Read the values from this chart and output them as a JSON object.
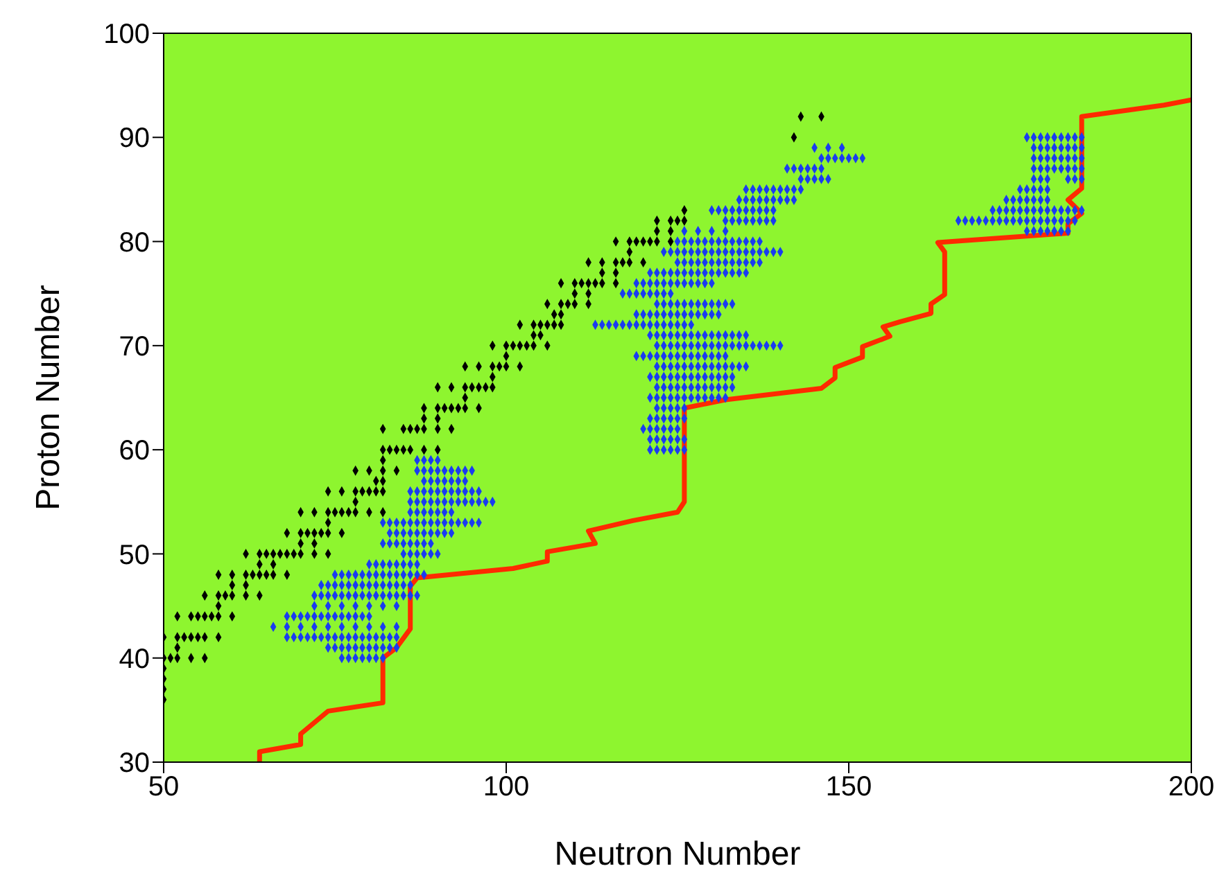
{
  "chart_data": {
    "type": "scatter",
    "xlabel": "Neutron Number",
    "ylabel": "Proton Number",
    "xlim": [
      50,
      200
    ],
    "ylim": [
      30,
      100
    ],
    "xticks": [
      50,
      100,
      150,
      200
    ],
    "yticks": [
      30,
      40,
      50,
      60,
      70,
      80,
      90,
      100
    ],
    "grid": false,
    "marker": "diamond",
    "series": [
      {
        "color": "#000000",
        "x": [
          50,
          50,
          50,
          50,
          50,
          51,
          52,
          54,
          56,
          52,
          50,
          52,
          53,
          54,
          55,
          56,
          58,
          52,
          54,
          55,
          56,
          57,
          58,
          60,
          58,
          56,
          58,
          59,
          60,
          62,
          64,
          60,
          62,
          58,
          60,
          62,
          63,
          64,
          65,
          66,
          68,
          64,
          66,
          62,
          64,
          65,
          66,
          67,
          68,
          69,
          70,
          72,
          74,
          70,
          72,
          68,
          70,
          71,
          72,
          73,
          74,
          76,
          74,
          70,
          72,
          74,
          75,
          76,
          77,
          78,
          80,
          82,
          78,
          74,
          76,
          78,
          79,
          80,
          81,
          82,
          81,
          82,
          78,
          80,
          82,
          84,
          82,
          82,
          83,
          84,
          85,
          86,
          88,
          90,
          82,
          85,
          86,
          87,
          88,
          90,
          92,
          88,
          90,
          88,
          90,
          91,
          92,
          93,
          94,
          96,
          94,
          90,
          92,
          94,
          95,
          96,
          97,
          98,
          98,
          94,
          96,
          98,
          99,
          100,
          102,
          100,
          98,
          100,
          101,
          102,
          103,
          104,
          106,
          104,
          105,
          102,
          104,
          105,
          106,
          107,
          108,
          107,
          108,
          106,
          108,
          109,
          110,
          112,
          110,
          112,
          108,
          110,
          111,
          112,
          113,
          114,
          116,
          114,
          116,
          112,
          114,
          116,
          117,
          118,
          120,
          118,
          116,
          118,
          119,
          120,
          121,
          122,
          124,
          122,
          124,
          122,
          124,
          125,
          126,
          126,
          142,
          143,
          146
        ],
        "values": [
          36,
          37,
          38,
          39,
          40,
          40,
          40,
          40,
          40,
          41,
          42,
          42,
          42,
          42,
          42,
          42,
          42,
          44,
          44,
          44,
          44,
          44,
          44,
          44,
          45,
          46,
          46,
          46,
          46,
          46,
          46,
          47,
          47,
          48,
          48,
          48,
          48,
          48,
          48,
          48,
          48,
          49,
          49,
          50,
          50,
          50,
          50,
          50,
          50,
          50,
          50,
          50,
          50,
          51,
          51,
          52,
          52,
          52,
          52,
          52,
          52,
          52,
          53,
          54,
          54,
          54,
          54,
          54,
          54,
          54,
          54,
          54,
          55,
          56,
          56,
          56,
          56,
          56,
          56,
          56,
          57,
          57,
          58,
          58,
          58,
          58,
          59,
          60,
          60,
          60,
          60,
          60,
          60,
          60,
          62,
          62,
          62,
          62,
          62,
          62,
          62,
          63,
          63,
          64,
          64,
          64,
          64,
          64,
          64,
          64,
          65,
          66,
          66,
          66,
          66,
          66,
          66,
          66,
          67,
          68,
          68,
          68,
          68,
          68,
          68,
          69,
          70,
          70,
          70,
          70,
          70,
          70,
          70,
          71,
          71,
          72,
          72,
          72,
          72,
          72,
          72,
          73,
          73,
          74,
          74,
          74,
          74,
          74,
          75,
          75,
          76,
          76,
          76,
          76,
          76,
          76,
          76,
          77,
          77,
          78,
          78,
          78,
          78,
          78,
          78,
          79,
          80,
          80,
          80,
          80,
          80,
          80,
          80,
          81,
          81,
          82,
          82,
          82,
          82,
          83,
          90,
          92,
          92
        ]
      },
      {
        "color": "#1a3cf0",
        "x": [
          76,
          77,
          78,
          79,
          80,
          81,
          82,
          74,
          75,
          76,
          77,
          78,
          79,
          80,
          81,
          82,
          83,
          84,
          68,
          69,
          70,
          71,
          72,
          73,
          74,
          75,
          76,
          77,
          78,
          79,
          80,
          81,
          82,
          83,
          84,
          66,
          68,
          70,
          72,
          74,
          76,
          78,
          80,
          82,
          84,
          68,
          69,
          70,
          71,
          72,
          73,
          74,
          75,
          76,
          77,
          78,
          79,
          80,
          72,
          74,
          76,
          78,
          80,
          82,
          84,
          72,
          73,
          74,
          75,
          76,
          77,
          78,
          79,
          80,
          81,
          82,
          83,
          84,
          85,
          86,
          87,
          73,
          74,
          75,
          76,
          77,
          78,
          79,
          80,
          81,
          82,
          83,
          84,
          85,
          86,
          75,
          76,
          77,
          78,
          79,
          80,
          81,
          82,
          83,
          84,
          85,
          86,
          87,
          88,
          80,
          81,
          82,
          83,
          84,
          85,
          86,
          87,
          85,
          86,
          87,
          88,
          89,
          90,
          82,
          83,
          84,
          85,
          86,
          87,
          88,
          89,
          83,
          84,
          85,
          86,
          87,
          88,
          89,
          90,
          91,
          92,
          82,
          83,
          84,
          85,
          86,
          87,
          88,
          89,
          90,
          91,
          92,
          93,
          94,
          95,
          96,
          86,
          87,
          88,
          89,
          90,
          91,
          92,
          86,
          87,
          88,
          89,
          90,
          91,
          92,
          93,
          94,
          95,
          96,
          97,
          98,
          86,
          87,
          88,
          89,
          90,
          91,
          92,
          93,
          94,
          95,
          96,
          88,
          89,
          90,
          91,
          92,
          93,
          94,
          87,
          88,
          89,
          90,
          91,
          92,
          93,
          94,
          95,
          87,
          88,
          89,
          90,
          121,
          122,
          123,
          124,
          125,
          126,
          121,
          122,
          123,
          124,
          125,
          126,
          120,
          121,
          122,
          123,
          124,
          125,
          121,
          122,
          123,
          124,
          125,
          126,
          122,
          123,
          124,
          125,
          126,
          121,
          122,
          123,
          124,
          125,
          126,
          127,
          128,
          129,
          130,
          131,
          132,
          122,
          123,
          124,
          125,
          126,
          127,
          128,
          129,
          130,
          131,
          132,
          133,
          121,
          122,
          123,
          124,
          125,
          126,
          127,
          128,
          129,
          130,
          131,
          132,
          133,
          122,
          123,
          124,
          125,
          126,
          127,
          128,
          129,
          130,
          131,
          132,
          133,
          134,
          135,
          119,
          120,
          121,
          122,
          123,
          124,
          125,
          126,
          127,
          128,
          129,
          130,
          131,
          132,
          122,
          123,
          124,
          125,
          126,
          127,
          128,
          129,
          130,
          131,
          132,
          133,
          134,
          135,
          136,
          137,
          138,
          139,
          140,
          121,
          122,
          123,
          124,
          125,
          126,
          127,
          128,
          129,
          130,
          131,
          132,
          133,
          134,
          135,
          113,
          114,
          115,
          116,
          117,
          118,
          119,
          120,
          121,
          122,
          123,
          124,
          125,
          126,
          127,
          119,
          120,
          121,
          122,
          123,
          124,
          125,
          126,
          127,
          128,
          129,
          130,
          131,
          122,
          123,
          124,
          125,
          126,
          127,
          128,
          129,
          130,
          131,
          132,
          133,
          117,
          118,
          119,
          120,
          121,
          122,
          123,
          124,
          119,
          120,
          121,
          122,
          123,
          124,
          125,
          126,
          127,
          128,
          129,
          130,
          121,
          122,
          123,
          124,
          125,
          126,
          127,
          128,
          129,
          130,
          131,
          132,
          133,
          134,
          135,
          125,
          126,
          127,
          128,
          129,
          130,
          131,
          132,
          133,
          134,
          135,
          136,
          137,
          123,
          124,
          125,
          126,
          127,
          128,
          129,
          130,
          131,
          132,
          133,
          134,
          135,
          136,
          137,
          138,
          139,
          140,
          125,
          126,
          127,
          128,
          129,
          130,
          131,
          132,
          133,
          134,
          135,
          136,
          137,
          126,
          128,
          130,
          132,
          132,
          133,
          134,
          135,
          136,
          137,
          138,
          139,
          130,
          131,
          132,
          133,
          134,
          135,
          136,
          137,
          138,
          139,
          134,
          135,
          136,
          137,
          138,
          139,
          140,
          141,
          142,
          135,
          136,
          137,
          138,
          139,
          140,
          141,
          142,
          143,
          143,
          144,
          145,
          146,
          147,
          141,
          142,
          143,
          144,
          145,
          146,
          146,
          147,
          148,
          149,
          150,
          151,
          152,
          145,
          147,
          149,
          176,
          177,
          178,
          179,
          180,
          181,
          182,
          166,
          167,
          168,
          169,
          170,
          171,
          172,
          173,
          174,
          175,
          176,
          177,
          178,
          179,
          180,
          181,
          182,
          183,
          171,
          172,
          173,
          174,
          175,
          176,
          177,
          178,
          179,
          180,
          181,
          182,
          183,
          184,
          173,
          174,
          175,
          176,
          177,
          178,
          179,
          175,
          176,
          177,
          178,
          179,
          177,
          178,
          179,
          182,
          183,
          184,
          177,
          178,
          179,
          180,
          181,
          182,
          183,
          184,
          177,
          178,
          179,
          180,
          181,
          182,
          183,
          184,
          177,
          178,
          179,
          180,
          181,
          182,
          183,
          184,
          176,
          177,
          178,
          179,
          180,
          181,
          182,
          183,
          184
        ],
        "values": [
          40,
          40,
          40,
          40,
          40,
          40,
          40,
          41,
          41,
          41,
          41,
          41,
          41,
          41,
          41,
          41,
          41,
          41,
          42,
          42,
          42,
          42,
          42,
          42,
          42,
          42,
          42,
          42,
          42,
          42,
          42,
          42,
          42,
          42,
          42,
          43,
          43,
          43,
          43,
          43,
          43,
          43,
          43,
          43,
          43,
          44,
          44,
          44,
          44,
          44,
          44,
          44,
          44,
          44,
          44,
          44,
          44,
          44,
          45,
          45,
          45,
          45,
          45,
          45,
          45,
          46,
          46,
          46,
          46,
          46,
          46,
          46,
          46,
          46,
          46,
          46,
          46,
          46,
          46,
          46,
          46,
          47,
          47,
          47,
          47,
          47,
          47,
          47,
          47,
          47,
          47,
          47,
          47,
          47,
          47,
          48,
          48,
          48,
          48,
          48,
          48,
          48,
          48,
          48,
          48,
          48,
          48,
          48,
          48,
          49,
          49,
          49,
          49,
          49,
          49,
          49,
          49,
          50,
          50,
          50,
          50,
          50,
          50,
          51,
          51,
          51,
          51,
          51,
          51,
          51,
          51,
          52,
          52,
          52,
          52,
          52,
          52,
          52,
          52,
          52,
          52,
          53,
          53,
          53,
          53,
          53,
          53,
          53,
          53,
          53,
          53,
          53,
          53,
          53,
          53,
          53,
          54,
          54,
          54,
          54,
          54,
          54,
          54,
          55,
          55,
          55,
          55,
          55,
          55,
          55,
          55,
          55,
          55,
          55,
          55,
          55,
          56,
          56,
          56,
          56,
          56,
          56,
          56,
          56,
          56,
          56,
          56,
          57,
          57,
          57,
          57,
          57,
          57,
          57,
          58,
          58,
          58,
          58,
          58,
          58,
          58,
          58,
          58,
          59,
          59,
          59,
          59,
          60,
          60,
          60,
          60,
          60,
          60,
          61,
          61,
          61,
          61,
          61,
          61,
          62,
          62,
          62,
          62,
          62,
          62,
          63,
          63,
          63,
          63,
          63,
          63,
          64,
          64,
          64,
          64,
          64,
          65,
          65,
          65,
          65,
          65,
          65,
          65,
          65,
          65,
          65,
          65,
          65,
          66,
          66,
          66,
          66,
          66,
          66,
          66,
          66,
          66,
          66,
          66,
          66,
          67,
          67,
          67,
          67,
          67,
          67,
          67,
          67,
          67,
          67,
          67,
          67,
          67,
          68,
          68,
          68,
          68,
          68,
          68,
          68,
          68,
          68,
          68,
          68,
          68,
          68,
          68,
          69,
          69,
          69,
          69,
          69,
          69,
          69,
          69,
          69,
          69,
          69,
          69,
          69,
          69,
          70,
          70,
          70,
          70,
          70,
          70,
          70,
          70,
          70,
          70,
          70,
          70,
          70,
          70,
          70,
          70,
          70,
          70,
          70,
          71,
          71,
          71,
          71,
          71,
          71,
          71,
          71,
          71,
          71,
          71,
          71,
          71,
          71,
          71,
          72,
          72,
          72,
          72,
          72,
          72,
          72,
          72,
          72,
          72,
          72,
          72,
          72,
          72,
          72,
          73,
          73,
          73,
          73,
          73,
          73,
          73,
          73,
          73,
          73,
          73,
          73,
          73,
          74,
          74,
          74,
          74,
          74,
          74,
          74,
          74,
          74,
          74,
          74,
          74,
          75,
          75,
          75,
          75,
          75,
          75,
          75,
          75,
          76,
          76,
          76,
          76,
          76,
          76,
          76,
          76,
          76,
          76,
          76,
          76,
          77,
          77,
          77,
          77,
          77,
          77,
          77,
          77,
          77,
          77,
          77,
          77,
          77,
          77,
          77,
          78,
          78,
          78,
          78,
          78,
          78,
          78,
          78,
          78,
          78,
          78,
          78,
          78,
          79,
          79,
          79,
          79,
          79,
          79,
          79,
          79,
          79,
          79,
          79,
          79,
          79,
          79,
          79,
          79,
          79,
          79,
          80,
          80,
          80,
          80,
          80,
          80,
          80,
          80,
          80,
          80,
          80,
          80,
          80,
          81,
          81,
          81,
          81,
          82,
          82,
          82,
          82,
          82,
          82,
          82,
          82,
          83,
          83,
          83,
          83,
          83,
          83,
          83,
          83,
          83,
          83,
          84,
          84,
          84,
          84,
          84,
          84,
          84,
          84,
          84,
          85,
          85,
          85,
          85,
          85,
          85,
          85,
          85,
          85,
          86,
          86,
          86,
          86,
          86,
          87,
          87,
          87,
          87,
          87,
          87,
          88,
          88,
          88,
          88,
          88,
          88,
          88,
          89,
          89,
          89,
          81,
          81,
          81,
          81,
          81,
          81,
          81,
          82,
          82,
          82,
          82,
          82,
          82,
          82,
          82,
          82,
          82,
          82,
          82,
          82,
          82,
          82,
          82,
          82,
          82,
          83,
          83,
          83,
          83,
          83,
          83,
          83,
          83,
          83,
          83,
          83,
          83,
          83,
          83,
          84,
          84,
          84,
          84,
          84,
          84,
          84,
          85,
          85,
          85,
          85,
          85,
          86,
          86,
          86,
          86,
          86,
          86,
          87,
          87,
          87,
          87,
          87,
          87,
          87,
          87,
          88,
          88,
          88,
          88,
          88,
          88,
          88,
          88,
          89,
          89,
          89,
          89,
          89,
          89,
          89,
          89,
          90,
          90,
          90,
          90,
          90,
          90,
          90,
          90,
          90
        ]
      },
      {
        "type": "line",
        "color": "#ff2a00",
        "marker": "none",
        "line_style": "solid",
        "x": [
          64,
          64,
          70,
          70,
          74,
          82,
          82,
          84,
          86,
          86,
          87,
          101,
          106,
          106,
          113,
          112,
          118.5,
          125,
          126,
          126,
          132,
          146,
          148,
          148,
          152,
          152,
          156,
          155,
          157.5,
          162,
          162,
          164,
          164,
          163,
          182,
          182,
          184,
          182,
          184,
          184,
          196,
          200
        ],
        "values": [
          30,
          31,
          31.7,
          32.7,
          34.9,
          35.7,
          40,
          41,
          42.8,
          46.9,
          47.7,
          48.6,
          49.3,
          50.2,
          51,
          52.2,
          53.2,
          54,
          55,
          64,
          64.8,
          65.9,
          66.9,
          67.9,
          68.9,
          69.9,
          70.9,
          71.8,
          72.3,
          73.1,
          74,
          74.9,
          79,
          79.9,
          80.8,
          81.7,
          82.7,
          84,
          85.1,
          92,
          93.1,
          93.6
        ]
      }
    ]
  }
}
